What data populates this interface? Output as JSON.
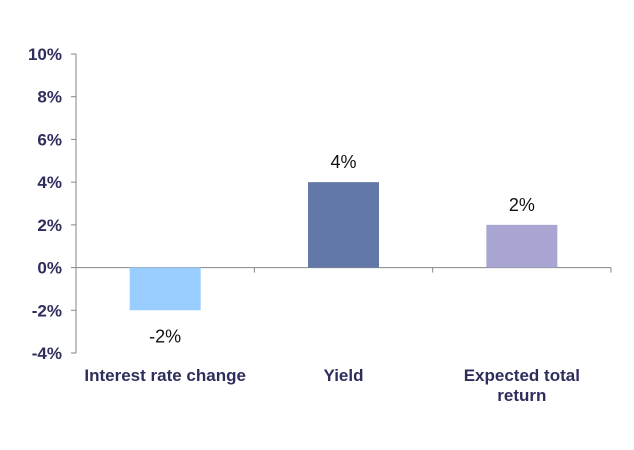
{
  "chart_data": {
    "type": "bar",
    "title": "",
    "xlabel": "",
    "ylabel": "",
    "categories": [
      "Interest rate change",
      "Yield",
      "Expected total return"
    ],
    "category_lines": [
      [
        "Interest rate change"
      ],
      [
        "Yield"
      ],
      [
        "Expected total",
        "return"
      ]
    ],
    "values": [
      -2,
      4,
      2
    ],
    "data_labels": [
      "-2%",
      "4%",
      "2%"
    ],
    "ylim": [
      -4,
      10
    ],
    "y_ticks": [
      -4,
      -2,
      0,
      2,
      4,
      6,
      8,
      10
    ],
    "y_tick_labels": [
      "-4%",
      "-2%",
      "0%",
      "2%",
      "4%",
      "6%",
      "8%",
      "10%"
    ],
    "bar_colors": [
      "#99ccff",
      "#6279a8",
      "#a9a5d2"
    ],
    "axis_color": "#868686",
    "grid": false,
    "legend": "none"
  }
}
